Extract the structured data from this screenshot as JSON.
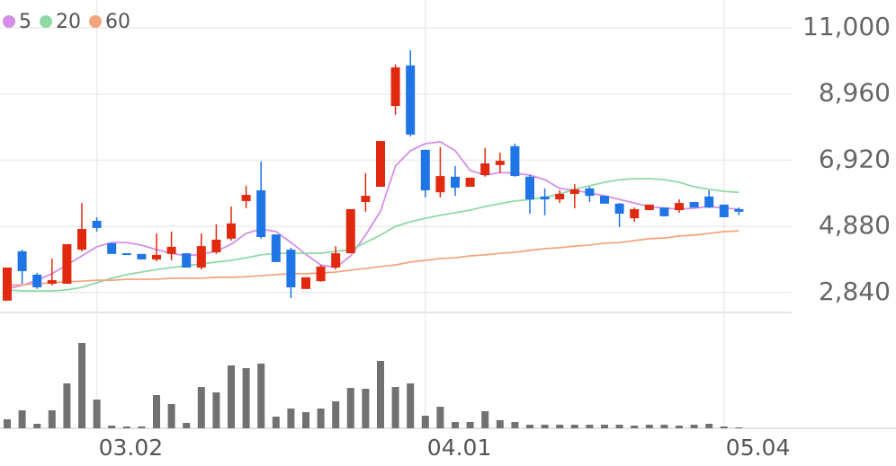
{
  "chart_data": {
    "type": "candlestick",
    "categories": [
      null,
      null,
      null,
      null,
      null,
      null,
      "03.02",
      null,
      null,
      null,
      null,
      null,
      null,
      null,
      null,
      null,
      null,
      null,
      null,
      null,
      null,
      null,
      null,
      null,
      null,
      null,
      null,
      null,
      "04.01",
      null,
      null,
      null,
      null,
      null,
      null,
      null,
      null,
      null,
      null,
      null,
      null,
      null,
      null,
      null,
      null,
      null,
      null,
      null,
      "05.04",
      null
    ],
    "ohlc": {
      "open": [
        2590,
        4110,
        3390,
        3110,
        3110,
        4160,
        5050,
        4360,
        4050,
        4030,
        3860,
        4030,
        4050,
        3610,
        4080,
        4500,
        5660,
        5990,
        4630,
        4160,
        2950,
        3190,
        3610,
        4050,
        5630,
        6100,
        8590,
        9840,
        7240,
        5930,
        6410,
        6100,
        6460,
        6770,
        7350,
        6410,
        5800,
        5710,
        5880,
        6050,
        5820,
        5580,
        5130,
        5380,
        5460,
        5380,
        5630,
        5800,
        5550,
        5410
      ],
      "high": [
        3610,
        4160,
        3440,
        3890,
        4330,
        5600,
        5160,
        4360,
        4050,
        4030,
        4660,
        4720,
        4050,
        4660,
        4940,
        5490,
        6130,
        6880,
        4630,
        4220,
        3310,
        3690,
        4270,
        5410,
        6520,
        7510,
        9870,
        10310,
        7240,
        7320,
        6740,
        6380,
        7290,
        7150,
        7430,
        6460,
        6050,
        5990,
        6180,
        6100,
        5820,
        5600,
        5460,
        5550,
        5460,
        5710,
        5630,
        5990,
        5550,
        5460
      ],
      "low": [
        2590,
        3110,
        2950,
        3060,
        3110,
        4110,
        4720,
        4030,
        4000,
        3860,
        3800,
        3830,
        3610,
        3550,
        4030,
        4440,
        5440,
        4500,
        3780,
        2670,
        2950,
        3170,
        3550,
        4050,
        5330,
        6100,
        8320,
        7650,
        5770,
        5770,
        5820,
        6100,
        6410,
        6520,
        6410,
        5270,
        5220,
        5600,
        5440,
        5630,
        5580,
        4860,
        5020,
        5380,
        5190,
        5300,
        5460,
        5440,
        5160,
        5220
      ],
      "close": [
        3610,
        3500,
        3000,
        3220,
        4330,
        4800,
        4830,
        4030,
        4000,
        3860,
        4000,
        4250,
        3610,
        4270,
        4470,
        4970,
        5850,
        4550,
        3780,
        3000,
        3310,
        3640,
        4050,
        5410,
        5820,
        7510,
        9780,
        7710,
        5990,
        6430,
        6070,
        6380,
        6820,
        6900,
        6430,
        5710,
        5710,
        5880,
        6020,
        5820,
        5580,
        5270,
        5410,
        5550,
        5190,
        5600,
        5460,
        5460,
        5160,
        5330
      ]
    },
    "up_color": "#e1290f",
    "down_color": "#1f74e6",
    "series": [
      {
        "name": "5",
        "color": "#d58ee8",
        "values": [
          2950,
          3060,
          3220,
          3420,
          3690,
          3970,
          4250,
          4380,
          4380,
          4300,
          4160,
          4050,
          3970,
          4020,
          4110,
          4330,
          4660,
          4800,
          4720,
          4380,
          4020,
          3690,
          3610,
          3970,
          4610,
          5350,
          6740,
          7210,
          7430,
          7490,
          7210,
          6600,
          6460,
          6540,
          6520,
          6460,
          6320,
          6050,
          5990,
          5910,
          5820,
          5710,
          5600,
          5490,
          5440,
          5410,
          5440,
          5490,
          5440,
          5410
        ]
      },
      {
        "name": "20",
        "color": "#8fd9a5",
        "values": [
          2920,
          2890,
          2890,
          2890,
          2920,
          3000,
          3140,
          3280,
          3390,
          3470,
          3550,
          3610,
          3670,
          3720,
          3780,
          3830,
          3910,
          4000,
          4050,
          4050,
          4050,
          4050,
          4110,
          4160,
          4380,
          4610,
          4880,
          5020,
          5130,
          5220,
          5300,
          5380,
          5490,
          5580,
          5660,
          5710,
          5770,
          5880,
          6020,
          6130,
          6240,
          6320,
          6350,
          6350,
          6320,
          6240,
          6100,
          6020,
          5960,
          5930
        ]
      },
      {
        "name": "60",
        "color": "#f3a57e",
        "values": [
          3060,
          3080,
          3110,
          3140,
          3170,
          3190,
          3220,
          3220,
          3250,
          3250,
          3250,
          3280,
          3280,
          3280,
          3310,
          3310,
          3330,
          3360,
          3390,
          3420,
          3420,
          3440,
          3470,
          3530,
          3580,
          3640,
          3690,
          3780,
          3830,
          3890,
          3910,
          3970,
          4000,
          4050,
          4080,
          4140,
          4190,
          4220,
          4270,
          4300,
          4360,
          4380,
          4440,
          4500,
          4520,
          4580,
          4610,
          4660,
          4720,
          4740
        ]
      }
    ],
    "volume": {
      "color": "#717171",
      "ylim": [
        0,
        100
      ],
      "values": [
        10,
        20,
        5,
        20,
        50,
        95,
        32,
        3,
        2,
        2,
        37,
        27,
        6,
        46,
        40,
        70,
        67,
        72,
        13,
        22,
        18,
        22,
        30,
        45,
        44,
        75,
        46,
        50,
        14,
        24,
        7,
        7,
        19,
        9,
        7,
        4,
        4,
        4,
        4,
        4,
        4,
        4,
        3,
        4,
        4,
        3,
        4,
        5,
        2,
        1
      ]
    },
    "ylim": [
      2225,
      11858
    ],
    "yticks": [
      {
        "value": 2840,
        "label": "2,840"
      },
      {
        "value": 4880,
        "label": "4,880"
      },
      {
        "value": 6920,
        "label": "6,920"
      },
      {
        "value": 8960,
        "label": "8,960"
      },
      {
        "value": 11000,
        "label": "11,000"
      }
    ],
    "grid": true
  }
}
